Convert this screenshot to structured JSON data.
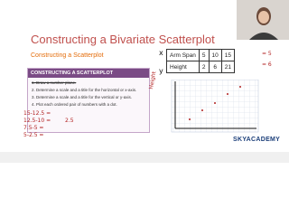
{
  "slide": {
    "title": "Constructing a Bivariate Scatterplot",
    "subtitle": "Constructing a Scatterplot",
    "box": {
      "header": "CONSTRUCTING A SCATTERPLOT",
      "steps": [
        "1.  Draw a number plane.",
        "2.  Determine a scale and a title for the horizontal or x-axis.",
        "3.  Determine a scale and a title for the vertical or y-axis.",
        "4.  Plot each ordered pair of numbers with a dot."
      ]
    },
    "table": {
      "rows": [
        [
          "Arm Span",
          "5",
          "10",
          "15"
        ],
        [
          "Height",
          "2",
          "6",
          "21"
        ]
      ]
    },
    "handwriting": {
      "x": "x",
      "y": "y",
      "axis_label": "Height",
      "calcs": [
        "15-12.5 =",
        "12.5-10 =",
        "7.5-5 =",
        "5-2.5 ="
      ],
      "results": [
        "2.5",
        "= 5",
        "= 6"
      ]
    },
    "logo": "SKYACADEMY"
  }
}
